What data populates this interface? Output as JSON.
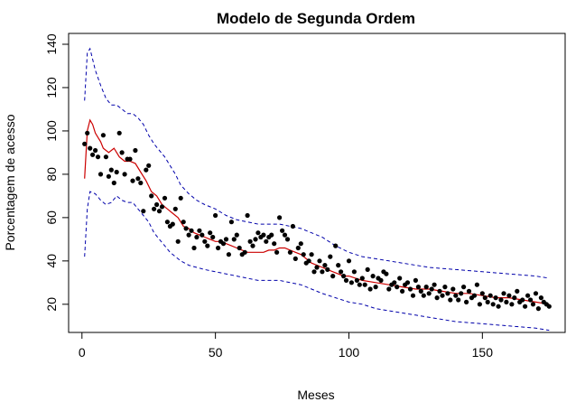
{
  "chart_data": {
    "type": "scatter",
    "title": "Modelo de Segunda Ordem",
    "xlabel": "Meses",
    "ylabel": "Porcentagem de acesso",
    "xlim": [
      -5,
      181
    ],
    "ylim": [
      7,
      145
    ],
    "x_ticks": [
      0,
      50,
      100,
      150
    ],
    "y_ticks": [
      20,
      40,
      60,
      80,
      100,
      120,
      140
    ],
    "grid": false,
    "legend": "none",
    "colors": {
      "points": "#000000",
      "fit": "#cc0000",
      "bands": "#0000aa"
    },
    "series": [
      {
        "type": "scatter",
        "x": [
          1,
          2,
          3,
          4,
          5,
          6,
          7,
          8,
          9,
          10,
          11,
          12,
          13,
          14,
          15,
          16,
          17,
          18,
          19,
          20,
          21,
          22,
          23,
          24,
          25,
          26,
          27,
          28,
          29,
          30,
          31,
          32,
          33,
          34,
          35,
          36,
          37,
          38,
          39,
          40,
          41,
          42,
          43,
          44,
          45,
          46,
          47,
          48,
          49,
          50,
          51,
          52,
          53,
          54,
          55,
          56,
          57,
          58,
          59,
          60,
          61,
          62,
          63,
          64,
          65,
          66,
          67,
          68,
          69,
          70,
          71,
          72,
          73,
          74,
          75,
          76,
          77,
          78,
          79,
          80,
          81,
          82,
          83,
          84,
          85,
          86,
          87,
          88,
          89,
          90,
          91,
          92,
          93,
          94,
          95,
          96,
          97,
          98,
          99,
          100,
          101,
          102,
          103,
          104,
          105,
          106,
          107,
          108,
          109,
          110,
          111,
          112,
          113,
          114,
          115,
          116,
          117,
          118,
          119,
          120,
          121,
          122,
          123,
          124,
          125,
          126,
          127,
          128,
          129,
          130,
          131,
          132,
          133,
          134,
          135,
          136,
          137,
          138,
          139,
          140,
          141,
          142,
          143,
          144,
          145,
          146,
          147,
          148,
          149,
          150,
          151,
          152,
          153,
          154,
          155,
          156,
          157,
          158,
          159,
          160,
          161,
          162,
          163,
          164,
          165,
          166,
          167,
          168,
          169,
          170,
          171,
          172,
          173,
          174,
          175
        ],
        "y": [
          94,
          99,
          92,
          89,
          91,
          88,
          80,
          98,
          88,
          79,
          82,
          76,
          81,
          99,
          90,
          80,
          87,
          87,
          77,
          91,
          78,
          76,
          63,
          82,
          84,
          70,
          64,
          66,
          63,
          65,
          69,
          58,
          56,
          57,
          64,
          49,
          69,
          58,
          55,
          52,
          54,
          46,
          51,
          54,
          52,
          49,
          47,
          53,
          51,
          61,
          46,
          49,
          48,
          50,
          43,
          58,
          50,
          52,
          46,
          43,
          44,
          61,
          49,
          47,
          50,
          53,
          51,
          52,
          49,
          51,
          52,
          48,
          44,
          60,
          54,
          52,
          50,
          44,
          56,
          41,
          46,
          48,
          43,
          39,
          40,
          43,
          35,
          37,
          40,
          35,
          38,
          36,
          42,
          33,
          47,
          38,
          35,
          33,
          31,
          40,
          30,
          35,
          31,
          29,
          32,
          29,
          36,
          27,
          33,
          28,
          32,
          31,
          35,
          34,
          27,
          29,
          30,
          28,
          32,
          26,
          29,
          30,
          27,
          24,
          31,
          28,
          26,
          24,
          28,
          25,
          27,
          29,
          23,
          26,
          24,
          28,
          25,
          22,
          27,
          24,
          22,
          25,
          28,
          21,
          26,
          23,
          24,
          29,
          20,
          25,
          23,
          21,
          24,
          20,
          23,
          19,
          22,
          25,
          21,
          24,
          20,
          23,
          26,
          21,
          22,
          19,
          24,
          22,
          20,
          25,
          18,
          23,
          21,
          20,
          19
        ]
      },
      {
        "type": "line",
        "name": "fit",
        "x": [
          1,
          2,
          3,
          4,
          5,
          6,
          7,
          8,
          10,
          12,
          14,
          16,
          18,
          20,
          22,
          24,
          26,
          28,
          30,
          32,
          34,
          36,
          38,
          40,
          42,
          44,
          46,
          48,
          50,
          52,
          54,
          56,
          58,
          60,
          62,
          64,
          66,
          68,
          70,
          72,
          74,
          76,
          78,
          80,
          82,
          84,
          86,
          88,
          90,
          92,
          94,
          96,
          98,
          100,
          105,
          110,
          115,
          120,
          125,
          130,
          135,
          140,
          145,
          150,
          155,
          160,
          165,
          170,
          175
        ],
        "y": [
          78,
          100,
          105,
          103,
          99,
          97,
          95,
          92,
          90,
          92,
          88,
          86,
          86,
          85,
          81,
          77,
          72,
          70,
          66,
          64,
          62,
          60,
          56,
          55,
          53,
          52,
          51,
          50,
          49,
          49,
          48,
          47,
          46,
          45,
          44,
          44,
          44,
          44,
          45,
          45,
          46,
          46,
          45,
          44,
          43,
          41,
          39,
          38,
          37,
          36,
          35,
          34,
          33,
          33,
          31,
          30,
          29,
          28,
          27,
          27,
          26,
          25,
          25,
          24,
          23,
          23,
          22,
          21,
          20
        ]
      },
      {
        "type": "line",
        "name": "upper",
        "x": [
          1,
          2,
          3,
          5,
          7,
          9,
          11,
          13,
          15,
          17,
          19,
          21,
          23,
          25,
          27,
          29,
          31,
          33,
          35,
          37,
          40,
          43,
          46,
          50,
          54,
          58,
          62,
          66,
          70,
          74,
          78,
          82,
          86,
          90,
          95,
          100,
          105,
          110,
          115,
          120,
          125,
          130,
          140,
          150,
          160,
          170,
          175
        ],
        "y": [
          114,
          136,
          138,
          128,
          121,
          115,
          112,
          112,
          110,
          108,
          108,
          106,
          103,
          98,
          94,
          91,
          88,
          84,
          80,
          75,
          71,
          68,
          66,
          64,
          61,
          59,
          58,
          57,
          57,
          57,
          56,
          55,
          53,
          51,
          47,
          44,
          42,
          41,
          40,
          39,
          38,
          37,
          36,
          35,
          34,
          33,
          32
        ]
      },
      {
        "type": "line",
        "name": "lower",
        "x": [
          1,
          2,
          3,
          5,
          7,
          9,
          11,
          13,
          15,
          17,
          19,
          21,
          23,
          25,
          27,
          29,
          31,
          33,
          35,
          37,
          40,
          43,
          46,
          50,
          54,
          58,
          62,
          66,
          70,
          74,
          78,
          82,
          86,
          90,
          95,
          100,
          105,
          110,
          115,
          120,
          125,
          130,
          140,
          150,
          160,
          170,
          175
        ],
        "y": [
          42,
          64,
          72,
          71,
          68,
          66,
          67,
          70,
          68,
          67,
          67,
          64,
          61,
          58,
          53,
          50,
          47,
          44,
          42,
          40,
          38,
          37,
          36,
          35,
          34,
          33,
          32,
          31,
          31,
          31,
          30,
          29,
          27,
          25,
          23,
          21,
          20,
          18,
          17,
          16,
          15,
          14,
          12,
          11,
          10,
          9,
          8
        ]
      }
    ]
  }
}
